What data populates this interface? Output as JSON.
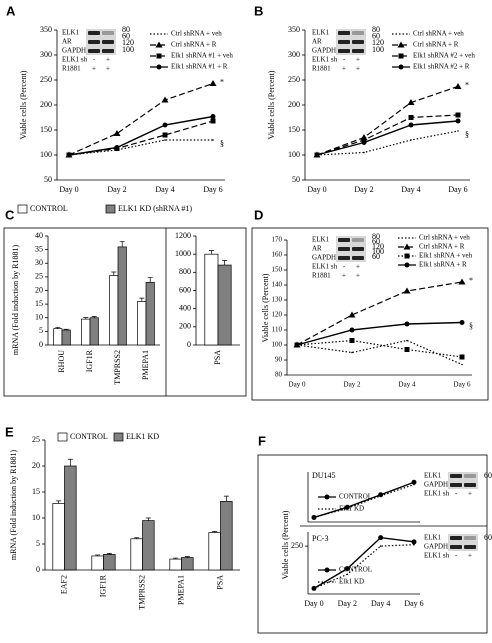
{
  "chart_data": [
    {
      "type": "line",
      "panel": "A",
      "ylabel": "Viable cells (Percent)",
      "categories": [
        "Day 0",
        "Day 2",
        "Day 4",
        "Day 6"
      ],
      "ylim": [
        50,
        350
      ],
      "yticks": [
        50,
        100,
        150,
        200,
        250,
        300,
        350
      ],
      "series": [
        {
          "name": "Ctrl shRNA + veh",
          "color": "#000000",
          "style": "dotted",
          "marker": "none",
          "values": [
            100,
            110,
            130,
            130
          ]
        },
        {
          "name": "Ctrl shRNA + R",
          "color": "#000000",
          "style": "dashed",
          "marker": "triangle",
          "values": [
            100,
            143,
            210,
            243
          ]
        },
        {
          "name": "Elk1 shRNA #1 + veh",
          "color": "#000000",
          "style": "dashed",
          "marker": "square",
          "values": [
            100,
            113,
            140,
            168
          ]
        },
        {
          "name": "Elk1 shRNA #1 + R",
          "color": "#000000",
          "style": "solid",
          "marker": "circle",
          "values": [
            100,
            115,
            160,
            177
          ]
        }
      ],
      "annotations": [
        "*",
        "§"
      ],
      "blot": {
        "rows": [
          "ELK1",
          "AR",
          "GAPDH"
        ],
        "markers": [
          "80",
          "60",
          "120",
          "100"
        ],
        "conditions": [
          {
            "label": "ELK1 sh",
            "signs": [
              "-",
              "+"
            ]
          },
          {
            "label": "R1881",
            "signs": [
              "+",
              "+"
            ]
          }
        ]
      }
    },
    {
      "type": "line",
      "panel": "B",
      "ylabel": "Viable cells (Percent)",
      "categories": [
        "Day 0",
        "Day 2",
        "Day 4",
        "Day 6"
      ],
      "ylim": [
        50,
        350
      ],
      "yticks": [
        50,
        100,
        150,
        200,
        250,
        300,
        350
      ],
      "series": [
        {
          "name": "Ctrl shRNA + veh",
          "color": "#000000",
          "style": "dotted",
          "marker": "none",
          "values": [
            100,
            105,
            130,
            148
          ]
        },
        {
          "name": "Ctrl shRNA + R",
          "color": "#000000",
          "style": "dashed",
          "marker": "triangle",
          "values": [
            100,
            135,
            205,
            237
          ]
        },
        {
          "name": "Elk1 shRNA #2 + veh",
          "color": "#000000",
          "style": "dashed",
          "marker": "square",
          "values": [
            100,
            130,
            175,
            180
          ]
        },
        {
          "name": "Elk1 shRNA #2 + R",
          "color": "#000000",
          "style": "solid",
          "marker": "circle",
          "values": [
            100,
            125,
            160,
            168
          ]
        }
      ],
      "annotations": [
        "*",
        "§"
      ],
      "blot": {
        "rows": [
          "ELK1",
          "AR",
          "GAPDH"
        ],
        "markers": [
          "80",
          "60",
          "120",
          "100"
        ],
        "conditions": [
          {
            "label": "ELK1 sh",
            "signs": [
              "-",
              "+"
            ]
          },
          {
            "label": "R1881",
            "signs": [
              "+",
              "+"
            ]
          }
        ]
      }
    },
    {
      "type": "bar",
      "panel": "C",
      "ylabel": "mRNA (Fold induction by R1881)",
      "categories": [
        "RHOU",
        "IGF1R",
        "TMPRSS2",
        "PMEPA1"
      ],
      "ylim": [
        0,
        40
      ],
      "yticks": [
        0,
        5,
        10,
        15,
        20,
        25,
        30,
        35,
        40
      ],
      "series": [
        {
          "name": "CONTROL",
          "color": "#ffffff",
          "values": [
            6,
            9.5,
            25.5,
            16
          ],
          "errors": [
            0.5,
            0.6,
            1.3,
            1.2
          ]
        },
        {
          "name": "ELK1 KD (shRNA #1)",
          "color": "#808080",
          "values": [
            5.5,
            10,
            36,
            23
          ],
          "errors": [
            0.3,
            0.5,
            2,
            1.8
          ]
        }
      ]
    },
    {
      "type": "bar",
      "categories": [
        "PSA"
      ],
      "ylim": [
        0,
        1200
      ],
      "yticks": [
        0,
        200,
        400,
        600,
        800,
        1000,
        1200
      ],
      "series": [
        {
          "color": "#ffffff",
          "values": [
            1000
          ],
          "errors": [
            40
          ]
        },
        {
          "color": "#808080",
          "values": [
            880
          ],
          "errors": [
            50
          ]
        }
      ]
    },
    {
      "type": "line",
      "panel": "D",
      "ylabel": "Viable cells (Percent)",
      "categories": [
        "Day 0",
        "Day 2",
        "Day 4",
        "Day 6"
      ],
      "ylim": [
        80,
        170
      ],
      "yticks": [
        80,
        90,
        100,
        110,
        120,
        130,
        140,
        150,
        160,
        170
      ],
      "series": [
        {
          "name": "Ctrl shRNA + veh",
          "color": "#000000",
          "style": "dotted",
          "marker": "none",
          "values": [
            100,
            95,
            103,
            87
          ]
        },
        {
          "name": "Ctrl shRNA + R",
          "color": "#000000",
          "style": "dashed",
          "marker": "triangle",
          "values": [
            100,
            120,
            136,
            142
          ]
        },
        {
          "name": "Elk1 shRNA + veh",
          "color": "#000000",
          "style": "dotted",
          "marker": "square",
          "values": [
            100,
            103,
            97,
            92
          ]
        },
        {
          "name": "Elk1 shRNA + R",
          "color": "#000000",
          "style": "solid",
          "marker": "circle",
          "values": [
            100,
            110,
            114,
            115
          ]
        }
      ],
      "annotations": [
        "*",
        "§"
      ],
      "blot": {
        "rows": [
          "ELK1",
          "AR",
          "GAPDH"
        ],
        "markers": [
          "80",
          "60",
          "120",
          "100",
          "60"
        ],
        "conditions": [
          {
            "label": "ELK1 sh",
            "signs": [
              "-",
              "+"
            ]
          },
          {
            "label": "R1881",
            "signs": [
              "+",
              "+"
            ]
          }
        ]
      }
    },
    {
      "type": "bar",
      "panel": "E",
      "ylabel": "mRNA (Fold induction by R1881)",
      "categories": [
        "EAF2",
        "IGF1R",
        "TMPRSS2",
        "PMEPA1",
        "PSA"
      ],
      "ylim": [
        0,
        25
      ],
      "yticks": [
        0,
        5,
        10,
        15,
        20,
        25
      ],
      "series": [
        {
          "name": "CONTROL",
          "color": "#ffffff",
          "values": [
            12.8,
            2.7,
            6,
            2.1,
            7.2
          ],
          "errors": [
            0.5,
            0.2,
            0.2,
            0.2,
            0.2
          ]
        },
        {
          "name": "ELK1 KD",
          "color": "#808080",
          "values": [
            20,
            3,
            9.5,
            2.4,
            13.2
          ],
          "errors": [
            1.3,
            0.2,
            0.5,
            0.2,
            1
          ]
        }
      ]
    },
    {
      "type": "line",
      "panel": "F",
      "subtitle": "DU145",
      "ylabel": "Viable cells (Percent)",
      "ylim": [
        80,
        300
      ],
      "series": [
        {
          "name": "CONTROL",
          "color": "#000000",
          "style": "solid",
          "marker": "circle",
          "values": [
            100,
            145,
            200,
            255
          ]
        },
        {
          "name": "Elk1 KD",
          "color": "#000000",
          "style": "dotted",
          "marker": "none",
          "values": [
            100,
            140,
            195,
            245
          ]
        }
      ],
      "blot": {
        "rows": [
          "ELK1",
          "GAPDH"
        ],
        "markers": [
          "60"
        ],
        "conditions": [
          {
            "label": "ELK1 sh",
            "signs": [
              "-",
              "+"
            ]
          }
        ]
      }
    },
    {
      "type": "line",
      "subtitle": "PC-3",
      "categories": [
        "Day 0",
        "Day 2",
        "Day 4",
        "Day 6"
      ],
      "ylim": [
        80,
        300
      ],
      "yticks": [
        250
      ],
      "series": [
        {
          "name": "CONTROL",
          "color": "#000000",
          "style": "solid",
          "marker": "circle",
          "values": [
            100,
            170,
            280,
            265
          ]
        },
        {
          "name": "Elk1 KD",
          "color": "#000000",
          "style": "dotted",
          "marker": "none",
          "values": [
            100,
            150,
            250,
            255
          ]
        }
      ],
      "blot": {
        "rows": [
          "ELK1",
          "GAPDH"
        ],
        "markers": [
          "60"
        ],
        "conditions": [
          {
            "label": "ELK1 sh",
            "signs": [
              "-",
              "+"
            ]
          }
        ]
      }
    }
  ]
}
